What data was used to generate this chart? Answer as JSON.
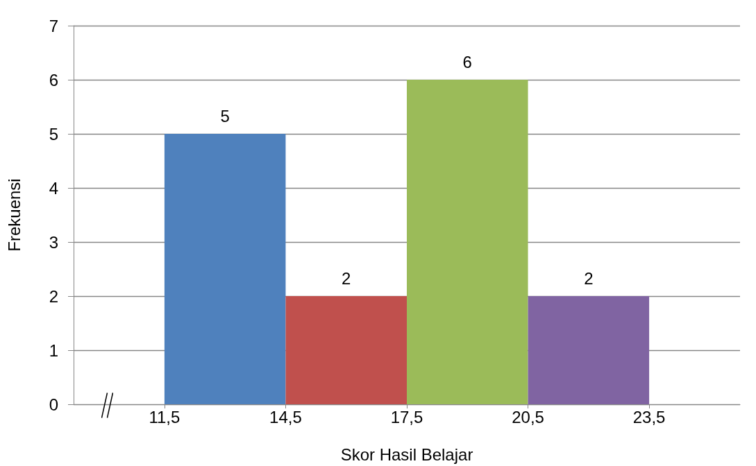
{
  "chart_data": {
    "type": "histogram",
    "xlabel": "Skor Hasil Belajar",
    "ylabel": "Frekuensi",
    "bins": [
      11.5,
      14.5,
      17.5,
      20.5,
      23.5
    ],
    "values": [
      5,
      2,
      6,
      2
    ],
    "colors": [
      "#4f81bd",
      "#c0504d",
      "#9bbb59",
      "#8064a2"
    ],
    "xlim": [
      9.25,
      25.75
    ],
    "xticks": [
      {
        "value": 11.5,
        "label": "11,5"
      },
      {
        "value": 14.5,
        "label": "14,5"
      },
      {
        "value": 17.5,
        "label": "17,5"
      },
      {
        "value": 20.5,
        "label": "20,5"
      },
      {
        "value": 23.5,
        "label": "23,5"
      }
    ],
    "ylim": [
      0,
      7
    ],
    "yticks": [
      0,
      1,
      2,
      3,
      4,
      5,
      6,
      7
    ],
    "grid": "y",
    "data_labels": true
  }
}
